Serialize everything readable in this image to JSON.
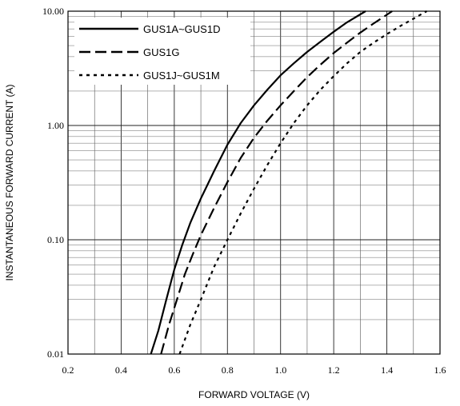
{
  "chart_data": {
    "type": "line",
    "title": "",
    "xlabel": "FORWARD VOLTAGE (V)",
    "ylabel": "INSTANTANEOUS FORWARD CURRENT (A)",
    "xscale": "linear",
    "yscale": "log",
    "xlim": [
      0.2,
      1.6
    ],
    "ylim": [
      0.01,
      10
    ],
    "xticks": [
      "0.2",
      "0.4",
      "0.6",
      "0.8",
      "1.0",
      "1.2",
      "1.4",
      "1.6"
    ],
    "yticks": [
      "0.01",
      "0.10",
      "1.00",
      "10.00"
    ],
    "grid": true,
    "legend": "top-left",
    "series": [
      {
        "name": "GUS1A~GUS1D",
        "style": "solid",
        "x": [
          0.512,
          0.54,
          0.57,
          0.6,
          0.63,
          0.66,
          0.7,
          0.75,
          0.8,
          0.85,
          0.9,
          0.95,
          1.0,
          1.05,
          1.1,
          1.15,
          1.2,
          1.25,
          1.32
        ],
        "y": [
          0.01,
          0.016,
          0.03,
          0.055,
          0.09,
          0.14,
          0.23,
          0.4,
          0.68,
          1.05,
          1.5,
          2.05,
          2.75,
          3.5,
          4.4,
          5.4,
          6.6,
          8.0,
          10.0
        ]
      },
      {
        "name": "GUS1G",
        "style": "dashed",
        "x": [
          0.55,
          0.58,
          0.61,
          0.64,
          0.67,
          0.7,
          0.75,
          0.8,
          0.85,
          0.9,
          0.95,
          1.0,
          1.05,
          1.1,
          1.15,
          1.2,
          1.25,
          1.3,
          1.35,
          1.42
        ],
        "y": [
          0.01,
          0.018,
          0.03,
          0.05,
          0.075,
          0.11,
          0.19,
          0.32,
          0.52,
          0.78,
          1.1,
          1.5,
          2.0,
          2.65,
          3.4,
          4.3,
          5.3,
          6.5,
          7.8,
          10.0
        ]
      },
      {
        "name": "GUS1J~GUS1M",
        "style": "dotted",
        "x": [
          0.62,
          0.66,
          0.7,
          0.75,
          0.8,
          0.85,
          0.9,
          0.95,
          1.0,
          1.05,
          1.1,
          1.15,
          1.2,
          1.25,
          1.3,
          1.35,
          1.4,
          1.45,
          1.5,
          1.55
        ],
        "y": [
          0.01,
          0.018,
          0.03,
          0.058,
          0.1,
          0.17,
          0.28,
          0.45,
          0.7,
          1.05,
          1.5,
          2.05,
          2.7,
          3.5,
          4.4,
          5.3,
          6.3,
          7.4,
          8.6,
          10.0
        ]
      }
    ]
  }
}
